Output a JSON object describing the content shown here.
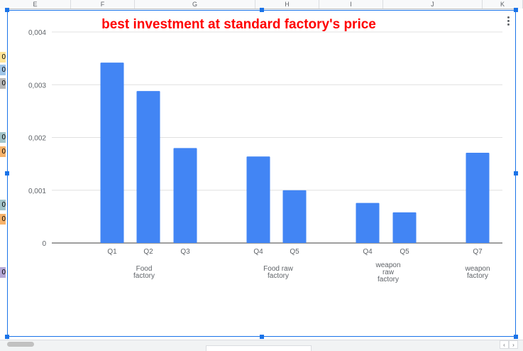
{
  "sheet": {
    "column_headers": [
      "E",
      "F",
      "G",
      "H",
      "I",
      "J",
      "K"
    ],
    "left_cell_fragments": [
      {
        "text": "0",
        "color": "#ffe599"
      },
      {
        "text": "0",
        "color": "#9fc5e8"
      },
      {
        "text": "0",
        "color": "#b7b7b7"
      },
      {
        "text": "0",
        "color": "#a2c4c9"
      },
      {
        "text": "0",
        "color": "#f6b26b"
      },
      {
        "text": "0",
        "color": "#a2c4c9"
      },
      {
        "text": "0",
        "color": "#f6b26b"
      },
      {
        "text": "0",
        "color": "#b4a7d6"
      }
    ],
    "scroll_left": "‹",
    "scroll_right": "›"
  },
  "chart": {
    "menu_icon": "kebab-menu-icon",
    "accent_color": "#1a73e8",
    "bar_color": "#4285f4"
  },
  "chart_data": {
    "type": "bar",
    "title": "best investment at standard factory's price",
    "xlabel": "",
    "ylabel": "",
    "ylim": [
      0,
      0.004
    ],
    "yticks": [
      "0",
      "0,001",
      "0,002",
      "0,003",
      "0,004"
    ],
    "grid": true,
    "categories": [
      "Q1",
      "Q2",
      "Q3",
      "Q4",
      "Q5",
      "Q4",
      "Q5",
      "Q7"
    ],
    "values": [
      0.00342,
      0.00288,
      0.0018,
      0.00164,
      0.001,
      0.00076,
      0.00058,
      0.00171
    ],
    "groups": [
      {
        "label": [
          "Food",
          "factory"
        ],
        "categories": [
          "Q1",
          "Q2",
          "Q3"
        ]
      },
      {
        "label": [
          "Food raw",
          "factory"
        ],
        "categories": [
          "Q4",
          "Q5"
        ]
      },
      {
        "label": [
          "weapon",
          "raw",
          "factory"
        ],
        "categories": [
          "Q4",
          "Q5"
        ]
      },
      {
        "label": [
          "weapon",
          "factory"
        ],
        "categories": [
          "Q7"
        ]
      }
    ]
  }
}
